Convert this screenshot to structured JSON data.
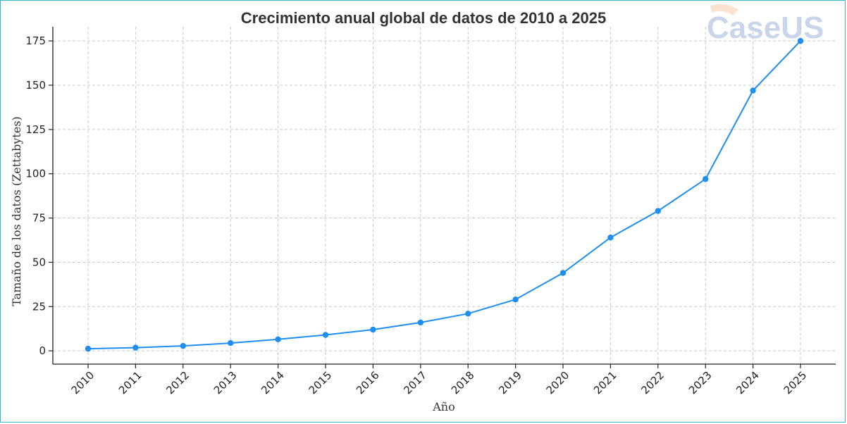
{
  "chart_data": {
    "type": "line",
    "title": "Crecimiento anual global de datos de 2010 a 2025",
    "xlabel": "Año",
    "ylabel": "Tamaño de los datos (Zettabytes)",
    "categories": [
      "2010",
      "2011",
      "2012",
      "2013",
      "2014",
      "2015",
      "2016",
      "2017",
      "2018",
      "2019",
      "2020",
      "2021",
      "2022",
      "2023",
      "2024",
      "2025"
    ],
    "values": [
      1.2,
      1.8,
      2.8,
      4.4,
      6.5,
      9,
      12,
      16,
      21,
      29,
      44,
      64,
      79,
      97,
      147,
      175
    ],
    "yticks": [
      0,
      25,
      50,
      75,
      100,
      125,
      150,
      175
    ],
    "ylim": [
      -7.5,
      183
    ],
    "grid": true,
    "series_color": "#1f8ef1"
  },
  "watermark": {
    "text": "CaseUS",
    "color": "#c9d6ea"
  }
}
